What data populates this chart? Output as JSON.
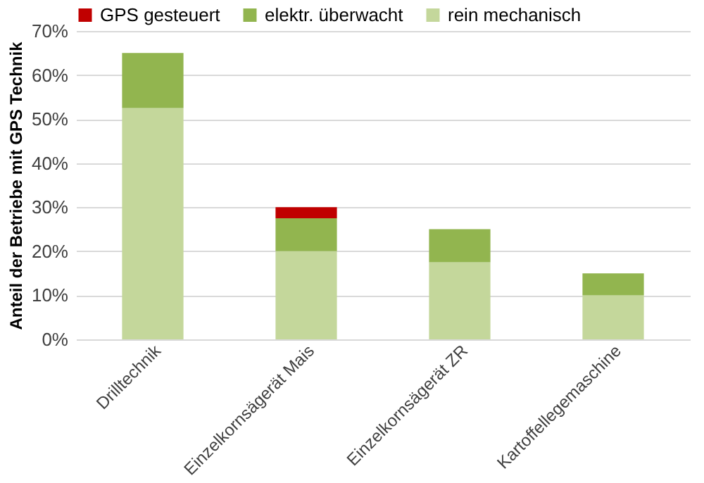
{
  "chart_data": {
    "type": "bar",
    "stacked": true,
    "ylabel": "Anteil der Betriebe mit GPS Technik",
    "categories": [
      "Drilltechnik",
      "Einzelkornsägerät Mais",
      "Einzelkornsägerät ZR",
      "Kartoffellegemaschine"
    ],
    "series": [
      {
        "name": "rein mechanisch",
        "color": "#c4d79b",
        "values": [
          52.5,
          20,
          17.5,
          10
        ]
      },
      {
        "name": "elektr. überwacht",
        "color": "#92b54f",
        "values": [
          12.5,
          7.5,
          7.5,
          5
        ]
      },
      {
        "name": "GPS gesteuert",
        "color": "#c00000",
        "values": [
          0,
          2.5,
          0,
          0
        ]
      }
    ],
    "ylim": [
      0,
      70
    ],
    "yticks": [
      {
        "value": 0,
        "label": "0%"
      },
      {
        "value": 10,
        "label": "10%"
      },
      {
        "value": 20,
        "label": "20%"
      },
      {
        "value": 30,
        "label": "30%"
      },
      {
        "value": 40,
        "label": "40%"
      },
      {
        "value": 50,
        "label": "50%"
      },
      {
        "value": 60,
        "label": "60%"
      },
      {
        "value": 70,
        "label": "70%"
      }
    ],
    "grid": "y",
    "legend": "top"
  }
}
